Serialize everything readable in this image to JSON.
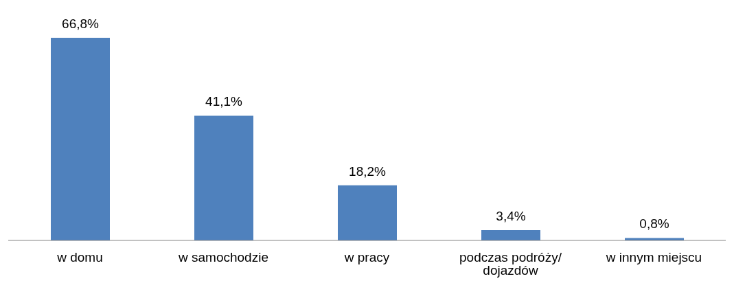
{
  "chart_data": {
    "type": "bar",
    "categories": [
      "w domu",
      "w samochodzie",
      "w pracy",
      "podczas podróży/ dojazdów",
      "w innym miejscu"
    ],
    "values": [
      66.8,
      41.1,
      18.2,
      3.4,
      0.8
    ],
    "value_labels": [
      "66,8%",
      "41,1%",
      "18,2%",
      "3,4%",
      "0,8%"
    ],
    "color": "#4f81bd",
    "tick_labels": "x",
    "grid": false,
    "legend": false
  }
}
